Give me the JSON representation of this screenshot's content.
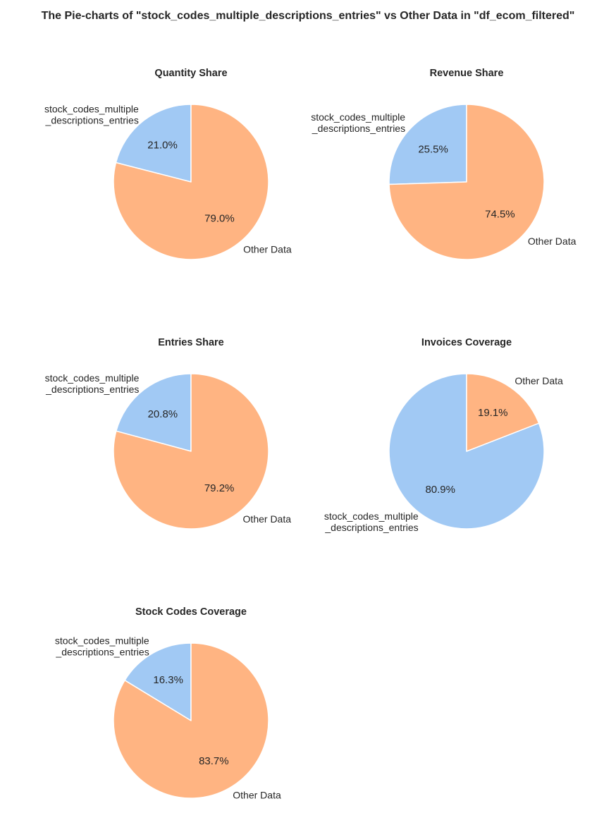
{
  "suptitle": "The Pie-charts of \"stock_codes_multiple_descriptions_entries\" vs Other Data in \"df_ecom_filtered\"",
  "colors": {
    "stock_codes_multiple_descriptions_entries": "#a1c9f4",
    "Other Data": "#ffb482",
    "edge": "#ffffff",
    "text": "#262626"
  },
  "chart_data": [
    {
      "type": "pie",
      "title": "Quantity Share",
      "labels": [
        "stock_codes_multiple\n_descriptions_entries",
        "Other Data"
      ],
      "values": [
        21.0,
        79.0
      ],
      "value_labels": [
        "21.0%",
        "79.0%"
      ],
      "start_angle_deg": 90,
      "direction": "counterclockwise"
    },
    {
      "type": "pie",
      "title": "Revenue Share",
      "labels": [
        "stock_codes_multiple\n_descriptions_entries",
        "Other Data"
      ],
      "values": [
        25.5,
        74.5
      ],
      "value_labels": [
        "25.5%",
        "74.5%"
      ],
      "start_angle_deg": 90,
      "direction": "counterclockwise"
    },
    {
      "type": "pie",
      "title": "Entries Share",
      "labels": [
        "stock_codes_multiple\n_descriptions_entries",
        "Other Data"
      ],
      "values": [
        20.8,
        79.2
      ],
      "value_labels": [
        "20.8%",
        "79.2%"
      ],
      "start_angle_deg": 90,
      "direction": "counterclockwise"
    },
    {
      "type": "pie",
      "title": "Invoices Coverage",
      "labels": [
        "stock_codes_multiple\n_descriptions_entries",
        "Other Data"
      ],
      "values": [
        80.9,
        19.1
      ],
      "value_labels": [
        "80.9%",
        "19.1%"
      ],
      "start_angle_deg": 90,
      "direction": "counterclockwise"
    },
    {
      "type": "pie",
      "title": "Stock Codes Coverage",
      "labels": [
        "stock_codes_multiple\n_descriptions_entries",
        "Other Data"
      ],
      "values": [
        16.3,
        83.7
      ],
      "value_labels": [
        "16.3%",
        "83.7%"
      ],
      "start_angle_deg": 90,
      "direction": "counterclockwise"
    }
  ]
}
